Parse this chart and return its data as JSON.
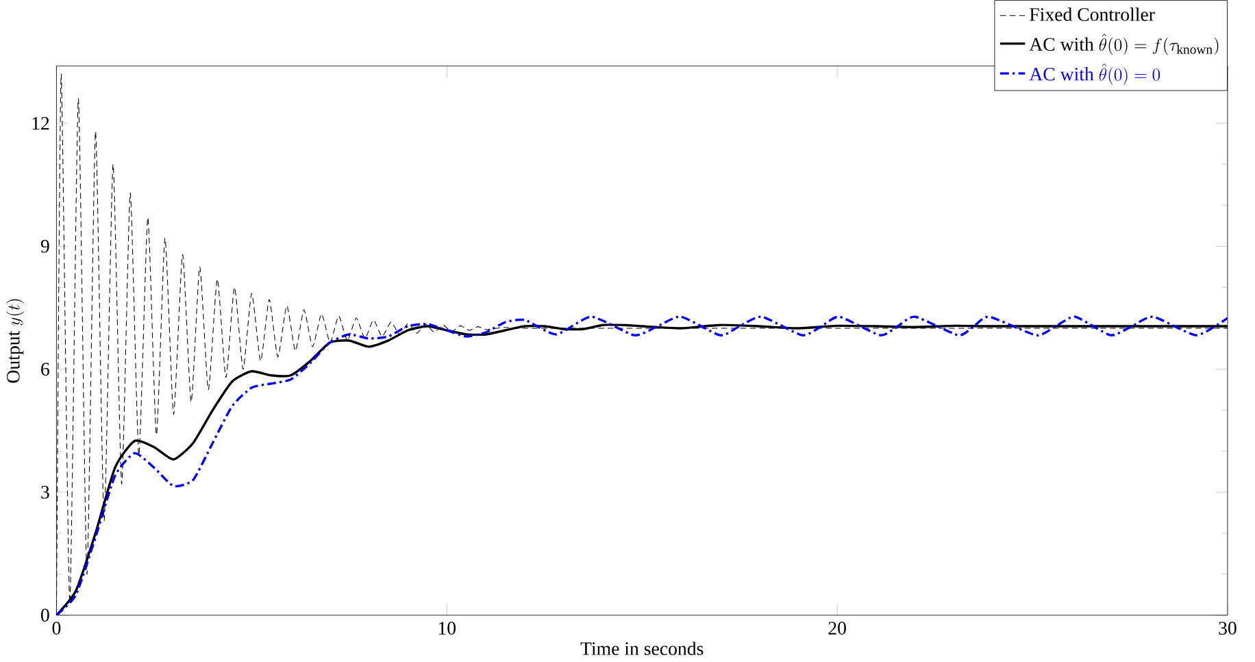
{
  "chart_data": {
    "type": "line",
    "xlabel": "Time in seconds",
    "ylabel": "\\text{Output }y(t)",
    "xlim": [
      0,
      30
    ],
    "ylim": [
      0,
      13.4
    ],
    "xticks": [
      0,
      10,
      20,
      30
    ],
    "yticks": [
      0,
      3,
      6,
      9,
      12
    ],
    "grid": false,
    "legend": "top right",
    "marker": "none",
    "series": [
      {
        "name": "\\text{Fixed Controller}",
        "color": "#000000",
        "line_style": "dashed",
        "x": [
          0,
          0.12,
          0.34,
          0.56,
          0.78,
          1.0,
          1.22,
          1.45,
          1.67,
          1.89,
          2.11,
          2.34,
          2.56,
          2.78,
          3.0,
          3.23,
          3.45,
          3.67,
          3.89,
          4.12,
          4.34,
          4.56,
          4.78,
          5.0,
          5.23,
          5.45,
          5.67,
          5.9,
          6.12,
          6.34,
          6.56,
          6.79,
          7.01,
          7.23,
          7.45,
          7.68,
          7.9,
          8.12,
          8.34,
          8.57,
          8.79,
          9.01,
          9.23,
          9.46,
          9.68,
          9.9,
          10.12,
          10.35,
          10.57,
          10.8,
          11.0,
          11.5,
          12,
          15,
          20,
          25,
          30
        ],
        "values": [
          0,
          13.2,
          0.3,
          12.6,
          1.0,
          11.8,
          2.3,
          11.0,
          3.2,
          10.3,
          3.9,
          9.7,
          4.4,
          9.2,
          4.9,
          8.8,
          5.2,
          8.5,
          5.5,
          8.2,
          5.8,
          8.0,
          6.0,
          7.85,
          6.2,
          7.7,
          6.3,
          7.55,
          6.45,
          7.45,
          6.55,
          7.35,
          6.65,
          7.3,
          6.7,
          7.25,
          6.75,
          7.2,
          6.8,
          7.15,
          6.85,
          7.12,
          6.88,
          7.1,
          6.9,
          7.08,
          6.92,
          7.06,
          6.95,
          7.04,
          6.97,
          7.02,
          7.0,
          7.0,
          7.0,
          7.0,
          7.0
        ]
      },
      {
        "name": "\\text{AC with }\\hat{\\theta}(0) = f(\\tau_{\\text{known}})",
        "color": "#000000",
        "line_style": "solid",
        "x": [
          0,
          0.5,
          1,
          1.5,
          2,
          2.5,
          3,
          3.5,
          4,
          4.5,
          5,
          5.5,
          6,
          6.5,
          7,
          7.5,
          8,
          8.5,
          9,
          9.5,
          10,
          10.5,
          11,
          11.5,
          12,
          12.5,
          13,
          13.5,
          14,
          14.5,
          15,
          16,
          17,
          18,
          19,
          20,
          21,
          22,
          23,
          24,
          26,
          28,
          30
        ],
        "values": [
          0,
          0.6,
          2.0,
          3.6,
          4.25,
          4.1,
          3.8,
          4.2,
          5.0,
          5.7,
          5.95,
          5.85,
          5.85,
          6.2,
          6.65,
          6.7,
          6.55,
          6.7,
          6.95,
          7.05,
          6.95,
          6.85,
          6.85,
          6.95,
          7.05,
          7.05,
          6.98,
          6.98,
          7.08,
          7.08,
          7.05,
          7.0,
          7.08,
          7.05,
          7.0,
          7.06,
          7.05,
          7.03,
          7.06,
          7.05,
          7.05,
          7.05,
          7.05
        ]
      },
      {
        "name": "\\text{AC with }\\hat{\\theta}(0) = 0",
        "color": "#0000ff",
        "line_style": "dashdot",
        "x": [
          0,
          0.5,
          1,
          1.5,
          2,
          2.5,
          3,
          3.5,
          4,
          4.5,
          5,
          5.5,
          6,
          6.5,
          7,
          7.5,
          8,
          8.5,
          9,
          9.5,
          10,
          10.5,
          11,
          11.5,
          12,
          12.8,
          13.7,
          14.8,
          15.4,
          16.0,
          17.0,
          17.5,
          18.07,
          19.1,
          19.6,
          20.06,
          21.1,
          21.55,
          22.0,
          23.1,
          23.5,
          23.9,
          25.1,
          25.6,
          26.1,
          27.0,
          27.55,
          28.1,
          29.2,
          30
        ],
        "values": [
          0,
          0.5,
          1.9,
          3.4,
          3.95,
          3.6,
          3.15,
          3.3,
          4.2,
          5.1,
          5.55,
          5.65,
          5.75,
          6.15,
          6.65,
          6.85,
          6.75,
          6.8,
          7.05,
          7.1,
          6.95,
          6.8,
          6.9,
          7.15,
          7.2,
          6.85,
          7.28,
          6.83,
          7.05,
          7.28,
          6.83,
          7.05,
          7.28,
          6.83,
          7.05,
          7.28,
          6.83,
          7.05,
          7.28,
          6.83,
          7.05,
          7.28,
          6.83,
          7.05,
          7.28,
          6.83,
          7.05,
          7.28,
          6.83,
          7.25
        ]
      }
    ]
  }
}
